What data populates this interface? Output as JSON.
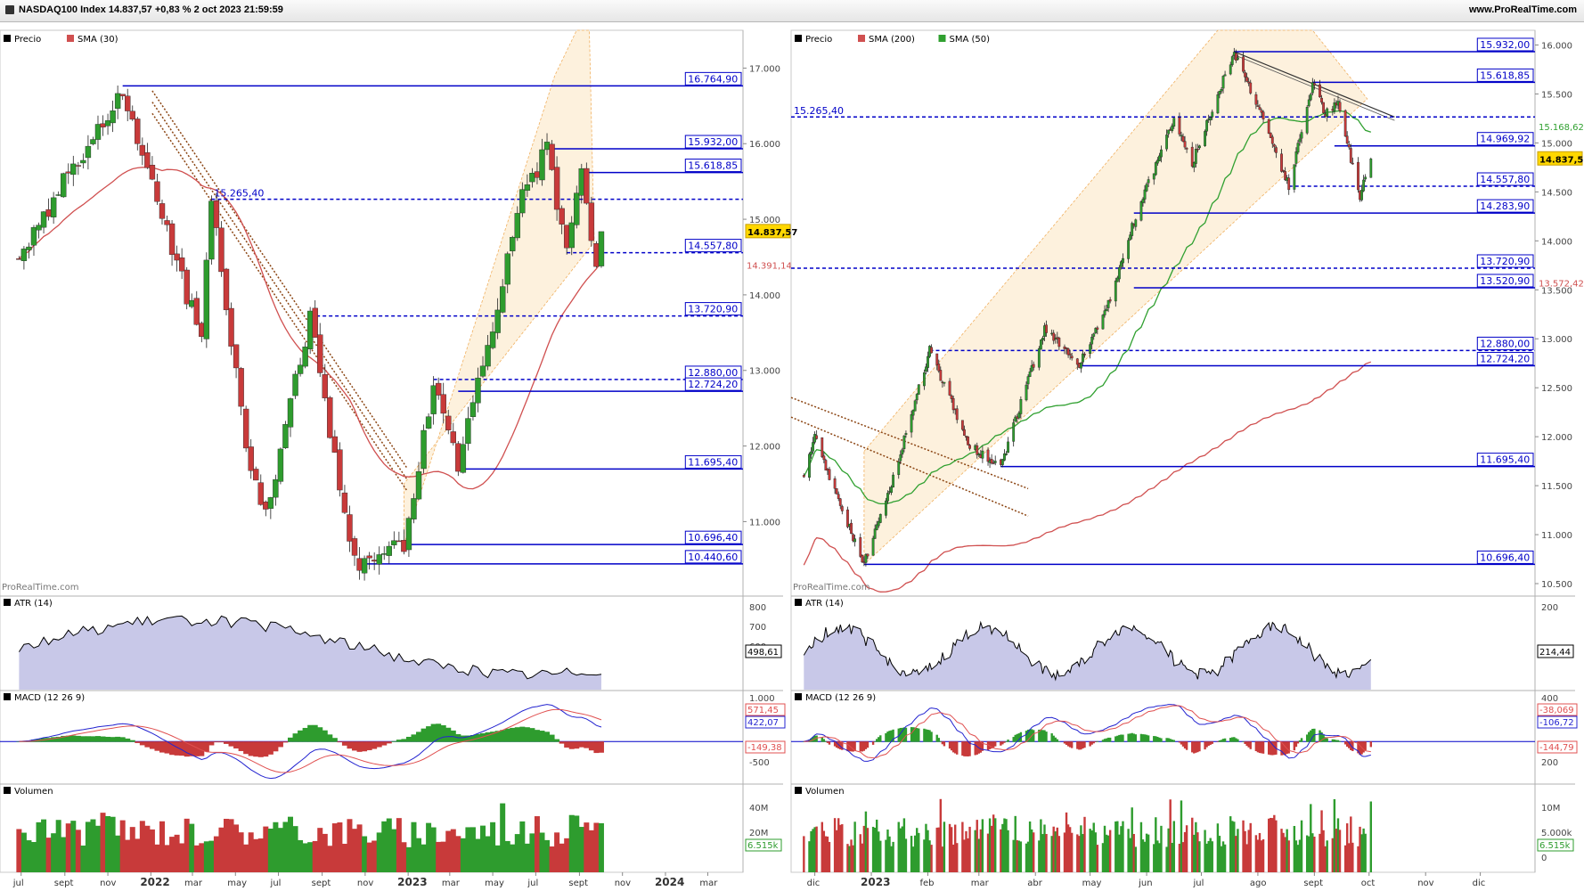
{
  "header": {
    "title": "NASDAQ100 Index 14.837,57 +0,83 % 2 oct 2023 21:59:59",
    "site": "www.ProRealTime.com"
  },
  "watermark": "ProRealTime.com",
  "colors": {
    "up": "#2e9c2e",
    "down": "#c83a3a",
    "level": "#0000c8",
    "sma30": "#d05050",
    "sma200": "#d05050",
    "sma50": "#30a030",
    "channel": "#fdf1dd",
    "downtrend": "#8b4513",
    "atr_line": "#000000",
    "atr_fill": "#c8c8e8",
    "macd_line": "#2424d0",
    "signal_line": "#e05050",
    "price_badge": "#ffd700"
  },
  "chart_data": [
    {
      "id": "left",
      "type": "candlestick",
      "timeframe": "weekly",
      "x_labels": [
        "jul",
        "sept",
        "nov",
        "2022",
        "mar",
        "may",
        "jul",
        "sept",
        "nov",
        "2023",
        "mar",
        "may",
        "jul",
        "sept",
        "nov",
        "2024",
        "mar"
      ],
      "indicator_legend": [
        "Precio",
        "SMA (30)"
      ],
      "y_ticks": [
        "17.000",
        "16.000",
        "15.000",
        "14.000",
        "13.000",
        "12.000",
        "11.000"
      ],
      "y_range": [
        10050,
        17500
      ],
      "current_price_label": "14.837,57",
      "sma30_label": "14.391,14",
      "anchors": [
        [
          "2021-06-28",
          14500
        ],
        [
          "2021-09-06",
          15600
        ],
        [
          "2021-11-22",
          16700
        ],
        [
          "2022-01-03",
          15400
        ],
        [
          "2022-03-14",
          13400
        ],
        [
          "2022-03-28",
          15265
        ],
        [
          "2022-05-16",
          12000
        ],
        [
          "2022-06-13",
          11100
        ],
        [
          "2022-08-15",
          13720
        ],
        [
          "2022-10-10",
          10700
        ],
        [
          "2022-10-24",
          10440
        ],
        [
          "2022-12-26",
          10696
        ],
        [
          "2023-02-06",
          12800
        ],
        [
          "2023-03-13",
          11695
        ],
        [
          "2023-06-12",
          15265
        ],
        [
          "2023-07-17",
          15932
        ],
        [
          "2023-08-14",
          14557
        ],
        [
          "2023-09-04",
          15618
        ],
        [
          "2023-09-25",
          14430
        ],
        [
          "2023-10-02",
          14837
        ]
      ],
      "levels": [
        {
          "value": 16764.9,
          "label": "16.764,90",
          "style": "solid",
          "from": "2021-11-22"
        },
        {
          "value": 15932.0,
          "label": "15.932,00",
          "style": "solid",
          "from": "2023-07-17"
        },
        {
          "value": 15618.85,
          "label": "15.618,85",
          "style": "solid",
          "from": "2023-09-04"
        },
        {
          "value": 15265.4,
          "label": "15.265,40",
          "style": "dashed",
          "from": "2022-03-28",
          "label_left": true
        },
        {
          "value": 14557.8,
          "label": "14.557,80",
          "style": "dashed",
          "from": "2023-08-14"
        },
        {
          "value": 13720.9,
          "label": "13.720,90",
          "style": "dashed",
          "from": "2022-08-15"
        },
        {
          "value": 12880.0,
          "label": "12.880,00",
          "style": "dashed",
          "from": "2023-02-06"
        },
        {
          "value": 12724.2,
          "label": "12.724,20",
          "style": "solid",
          "from": "2023-03-13"
        },
        {
          "value": 11695.4,
          "label": "11.695,40",
          "style": "solid",
          "from": "2023-03-13"
        },
        {
          "value": 10696.4,
          "label": "10.696,40",
          "style": "solid",
          "from": "2022-12-26"
        },
        {
          "value": 10440.6,
          "label": "10.440,60",
          "style": "solid",
          "from": "2022-10-24"
        }
      ],
      "atr": {
        "legend": "ATR (14)",
        "ticks": [
          "800",
          "700",
          "600"
        ],
        "last_label": "498,61"
      },
      "macd": {
        "legend": "MACD (12 26 9)",
        "ticks": [
          "1.000",
          "-500"
        ],
        "labels": [
          "571,45",
          "422,07",
          "-149,38"
        ]
      },
      "volume": {
        "legend": "Volumen",
        "ticks": [
          "40M",
          "20M"
        ],
        "last_label": "6.515k"
      }
    },
    {
      "id": "right",
      "type": "candlestick",
      "timeframe": "daily",
      "x_labels": [
        "dic",
        "2023",
        "feb",
        "mar",
        "abr",
        "may",
        "jun",
        "jul",
        "ago",
        "sept",
        "oct",
        "nov",
        "dic"
      ],
      "indicator_legend": [
        "Precio",
        "SMA (200)",
        "SMA (50)"
      ],
      "y_ticks": [
        "16.000",
        "15.500",
        "15.000",
        "14.500",
        "14.000",
        "13.500",
        "13.000",
        "12.500",
        "12.000",
        "11.500",
        "11.000",
        "10.500"
      ],
      "y_range": [
        10400,
        16150
      ],
      "current_price_label": "14.837,57",
      "sma50_label": "15.168,62",
      "sma200_label": "13.572,42",
      "anchors": [
        [
          "2022-11-25",
          11600
        ],
        [
          "2022-12-01",
          12000
        ],
        [
          "2022-12-15",
          11300
        ],
        [
          "2022-12-28",
          10696
        ],
        [
          "2023-01-10",
          11400
        ],
        [
          "2023-02-02",
          12880
        ],
        [
          "2023-02-24",
          11900
        ],
        [
          "2023-03-13",
          11695
        ],
        [
          "2023-04-06",
          13100
        ],
        [
          "2023-04-25",
          12724
        ],
        [
          "2023-05-12",
          13400
        ],
        [
          "2023-05-25",
          14200
        ],
        [
          "2023-06-16",
          15265
        ],
        [
          "2023-06-26",
          14800
        ],
        [
          "2023-07-19",
          15932
        ],
        [
          "2023-08-03",
          15300
        ],
        [
          "2023-08-18",
          14557
        ],
        [
          "2023-08-31",
          15618
        ],
        [
          "2023-09-07",
          15300
        ],
        [
          "2023-09-14",
          15400
        ],
        [
          "2023-09-26",
          14450
        ],
        [
          "2023-10-02",
          14837
        ]
      ],
      "levels": [
        {
          "value": 15932.0,
          "label": "15.932,00",
          "style": "solid",
          "from": "2023-07-19"
        },
        {
          "value": 15618.85,
          "label": "15.618,85",
          "style": "solid",
          "from": "2023-08-31"
        },
        {
          "value": 15265.4,
          "label": "15.265,40",
          "style": "dashed",
          "from": "start",
          "label_left": true
        },
        {
          "value": 14969.92,
          "label": "14.969,92",
          "style": "solid",
          "from": "2023-09-12"
        },
        {
          "value": 14557.8,
          "label": "14.557,80",
          "style": "dashed",
          "from": "2023-08-18"
        },
        {
          "value": 14283.9,
          "label": "14.283,90",
          "style": "solid",
          "from": "2023-05-25"
        },
        {
          "value": 13720.9,
          "label": "13.720,90",
          "style": "dashed",
          "from": "start"
        },
        {
          "value": 13520.9,
          "label": "13.520,90",
          "style": "solid",
          "from": "2023-05-25"
        },
        {
          "value": 12880.0,
          "label": "12.880,00",
          "style": "dashed",
          "from": "2023-02-02"
        },
        {
          "value": 12724.2,
          "label": "12.724,20",
          "style": "solid",
          "from": "2023-04-25"
        },
        {
          "value": 11695.4,
          "label": "11.695,40",
          "style": "solid",
          "from": "2023-03-13"
        },
        {
          "value": 10696.4,
          "label": "10.696,40",
          "style": "solid",
          "from": "2022-12-28"
        }
      ],
      "atr": {
        "legend": "ATR (14)",
        "ticks": [
          "200"
        ],
        "last_label": "214,44"
      },
      "macd": {
        "legend": "MACD (12 26 9)",
        "ticks": [
          "400",
          "200"
        ],
        "labels": [
          "-38,069",
          "-106,72",
          "-144,79"
        ]
      },
      "volume": {
        "legend": "Volumen",
        "ticks": [
          "10M",
          "5.000k",
          "0"
        ],
        "last_label": "6.515k"
      }
    }
  ]
}
